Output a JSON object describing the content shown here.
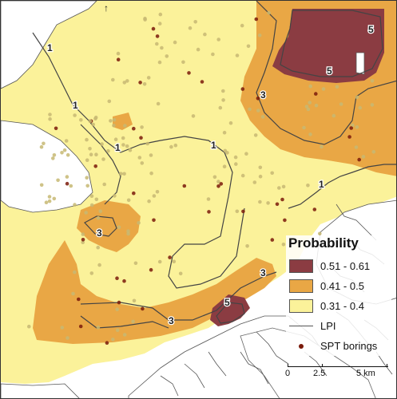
{
  "legend": {
    "title": "Probability",
    "classes": [
      {
        "label": "0.51 - 0.61",
        "color": "#8b3c42"
      },
      {
        "label": "0.41 - 0.5",
        "color": "#e9a745"
      },
      {
        "label": "0.31 - 0.4",
        "color": "#fbf29a"
      }
    ],
    "lpi_label": "LPI",
    "spt_label": "SPT borings",
    "spt_color": "#7a1a0a"
  },
  "scalebar": {
    "ticks": [
      "0",
      "2.5",
      "5 km"
    ]
  },
  "contour_labels": [
    "1",
    "1",
    "1",
    "1",
    "1",
    "3",
    "3",
    "3",
    "3",
    "5",
    "5",
    "5"
  ],
  "colors": {
    "water": "#ffffff",
    "land_outline": "#555555",
    "low": "#fbf29a",
    "mid": "#e9a745",
    "high": "#8b3c42",
    "dots": "#c7b873",
    "contour": "#444444"
  }
}
